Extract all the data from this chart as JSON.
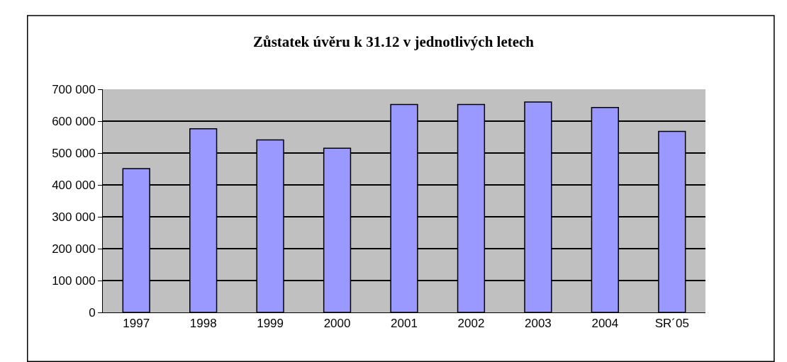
{
  "chart_data": {
    "type": "bar",
    "title": "Zůstatek úvěru k 31.12 v jednotlivých letech",
    "categories": [
      "1997",
      "1998",
      "1999",
      "2000",
      "2001",
      "2002",
      "2003",
      "2004",
      "SR´05"
    ],
    "values": [
      451000,
      576000,
      541000,
      515000,
      652000,
      652000,
      660000,
      643000,
      568000
    ],
    "color": "#9999ff",
    "ylim": [
      0,
      700000
    ],
    "yticks": [
      {
        "value": 0,
        "label": "0"
      },
      {
        "value": 100000,
        "label": "100 000"
      },
      {
        "value": 200000,
        "label": "200 000"
      },
      {
        "value": 300000,
        "label": "300 000"
      },
      {
        "value": 400000,
        "label": "400 000"
      },
      {
        "value": 500000,
        "label": "500 000"
      },
      {
        "value": 600000,
        "label": "600 000"
      },
      {
        "value": 700000,
        "label": "700 000"
      }
    ],
    "grid": "y",
    "legend": false
  }
}
